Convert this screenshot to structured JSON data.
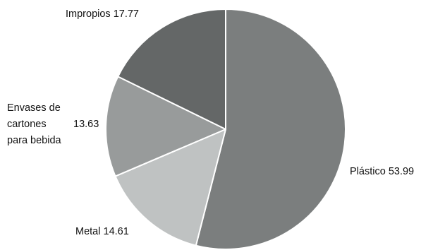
{
  "chart_data": {
    "type": "pie",
    "title": "",
    "slices": [
      {
        "label": "Plástico",
        "value": 53.99,
        "value_label": "53.99",
        "color": "#7b7e7e"
      },
      {
        "label": "Metal",
        "value": 14.61,
        "value_label": "14.61",
        "color": "#bfc2c2"
      },
      {
        "label": "Envases de cartones para bebida",
        "label_lines": [
          "Envases de",
          "cartones",
          "para bebida"
        ],
        "value": 13.63,
        "value_label": "13.63",
        "color": "#989b9b"
      },
      {
        "label": "Impropios",
        "value": 17.77,
        "value_label": "17.77",
        "color": "#646767"
      }
    ],
    "start_angle_deg": 0,
    "direction": "clockwise",
    "slice_border_color": "#ffffff",
    "legend": "none"
  }
}
